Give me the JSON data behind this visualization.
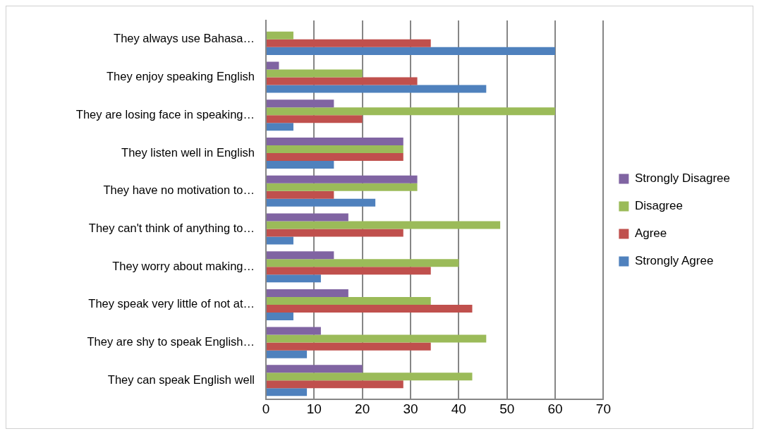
{
  "chart_data": {
    "type": "bar",
    "orientation": "horizontal",
    "categories": [
      "They always use Bahasa…",
      "They enjoy speaking English",
      "They are losing face in speaking…",
      "They listen well in English",
      "They have no motivation to…",
      "They can't think of anything to…",
      "They worry about making…",
      "They speak very little of not at…",
      "They are shy to speak English…",
      "They can speak English well"
    ],
    "series": [
      {
        "name": "Strongly Disagree",
        "color": "#8064a2",
        "values": [
          null,
          2.7,
          14.1,
          28.5,
          31.4,
          17.1,
          14.1,
          17.1,
          11.4,
          20
        ]
      },
      {
        "name": "Disagree",
        "color": "#9bbb59",
        "values": [
          5.7,
          20,
          60,
          28.5,
          31.4,
          48.6,
          40,
          34.2,
          45.7,
          42.8
        ]
      },
      {
        "name": "Agree",
        "color": "#c0504d",
        "values": [
          34.2,
          31.4,
          20,
          28.5,
          14.1,
          28.5,
          34.2,
          42.8,
          34.2,
          28.5
        ]
      },
      {
        "name": "Strongly Agree",
        "color": "#4f81bd",
        "values": [
          60,
          45.7,
          5.7,
          14.1,
          22.7,
          5.7,
          11.4,
          5.7,
          8.5,
          8.5
        ]
      }
    ],
    "xlim": [
      0,
      70
    ],
    "xticks": [
      0,
      10,
      20,
      30,
      40,
      50,
      60,
      70
    ],
    "grid": "x",
    "legend": "right"
  }
}
